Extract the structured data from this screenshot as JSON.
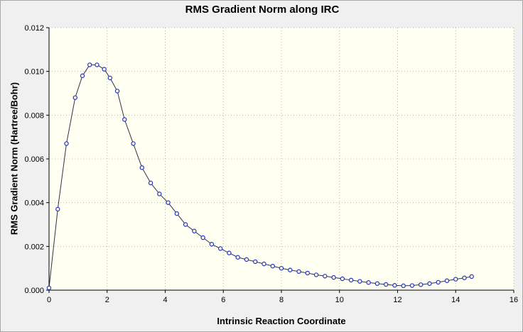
{
  "chart_data": {
    "type": "line",
    "title": "RMS Gradient Norm along IRC",
    "xlabel": "Intrinsic Reaction Coordinate",
    "ylabel": "RMS Gradient Norm (Hartree/Bohr)",
    "xlim": [
      0,
      16
    ],
    "ylim": [
      0,
      0.012
    ],
    "xticks": [
      0,
      2,
      4,
      6,
      8,
      10,
      12,
      14,
      16
    ],
    "xtick_labels": [
      "0",
      "2",
      "4",
      "6",
      "8",
      "10",
      "12",
      "14",
      "16"
    ],
    "yticks": [
      0,
      0.002,
      0.004,
      0.006,
      0.008,
      0.01,
      0.012
    ],
    "ytick_labels": [
      "0.000",
      "0.002",
      "0.004",
      "0.006",
      "0.008",
      "0.010",
      "0.012"
    ],
    "grid": true,
    "legend": false,
    "plot_bg": "#fffff2",
    "grid_color": "#b4b4a8",
    "line_color": "#30304a",
    "marker_color": "#2233bb",
    "series": [
      {
        "name": "RMS gradient norm",
        "x": [
          0.0,
          0.3,
          0.6,
          0.9,
          1.15,
          1.4,
          1.65,
          1.9,
          2.1,
          2.35,
          2.6,
          2.9,
          3.2,
          3.5,
          3.8,
          4.1,
          4.4,
          4.7,
          5.0,
          5.3,
          5.6,
          5.9,
          6.2,
          6.5,
          6.8,
          7.1,
          7.4,
          7.7,
          8.0,
          8.3,
          8.6,
          8.9,
          9.2,
          9.5,
          9.8,
          10.1,
          10.4,
          10.7,
          11.0,
          11.3,
          11.6,
          11.9,
          12.2,
          12.5,
          12.8,
          13.1,
          13.4,
          13.7,
          14.0,
          14.3,
          14.55
        ],
        "y": [
          0.0001,
          0.0037,
          0.0067,
          0.0088,
          0.0098,
          0.0103,
          0.0103,
          0.0101,
          0.0097,
          0.0091,
          0.0078,
          0.0067,
          0.0056,
          0.0049,
          0.0044,
          0.004,
          0.0035,
          0.003,
          0.0027,
          0.0024,
          0.0021,
          0.0019,
          0.0017,
          0.0015,
          0.0014,
          0.0013,
          0.0012,
          0.0011,
          0.001,
          0.00092,
          0.00085,
          0.00078,
          0.0007,
          0.00064,
          0.00058,
          0.00052,
          0.00046,
          0.0004,
          0.00035,
          0.0003,
          0.00026,
          0.00022,
          0.0002,
          0.00021,
          0.00025,
          0.0003,
          0.00036,
          0.00043,
          0.0005,
          0.00056,
          0.00062
        ]
      }
    ]
  }
}
